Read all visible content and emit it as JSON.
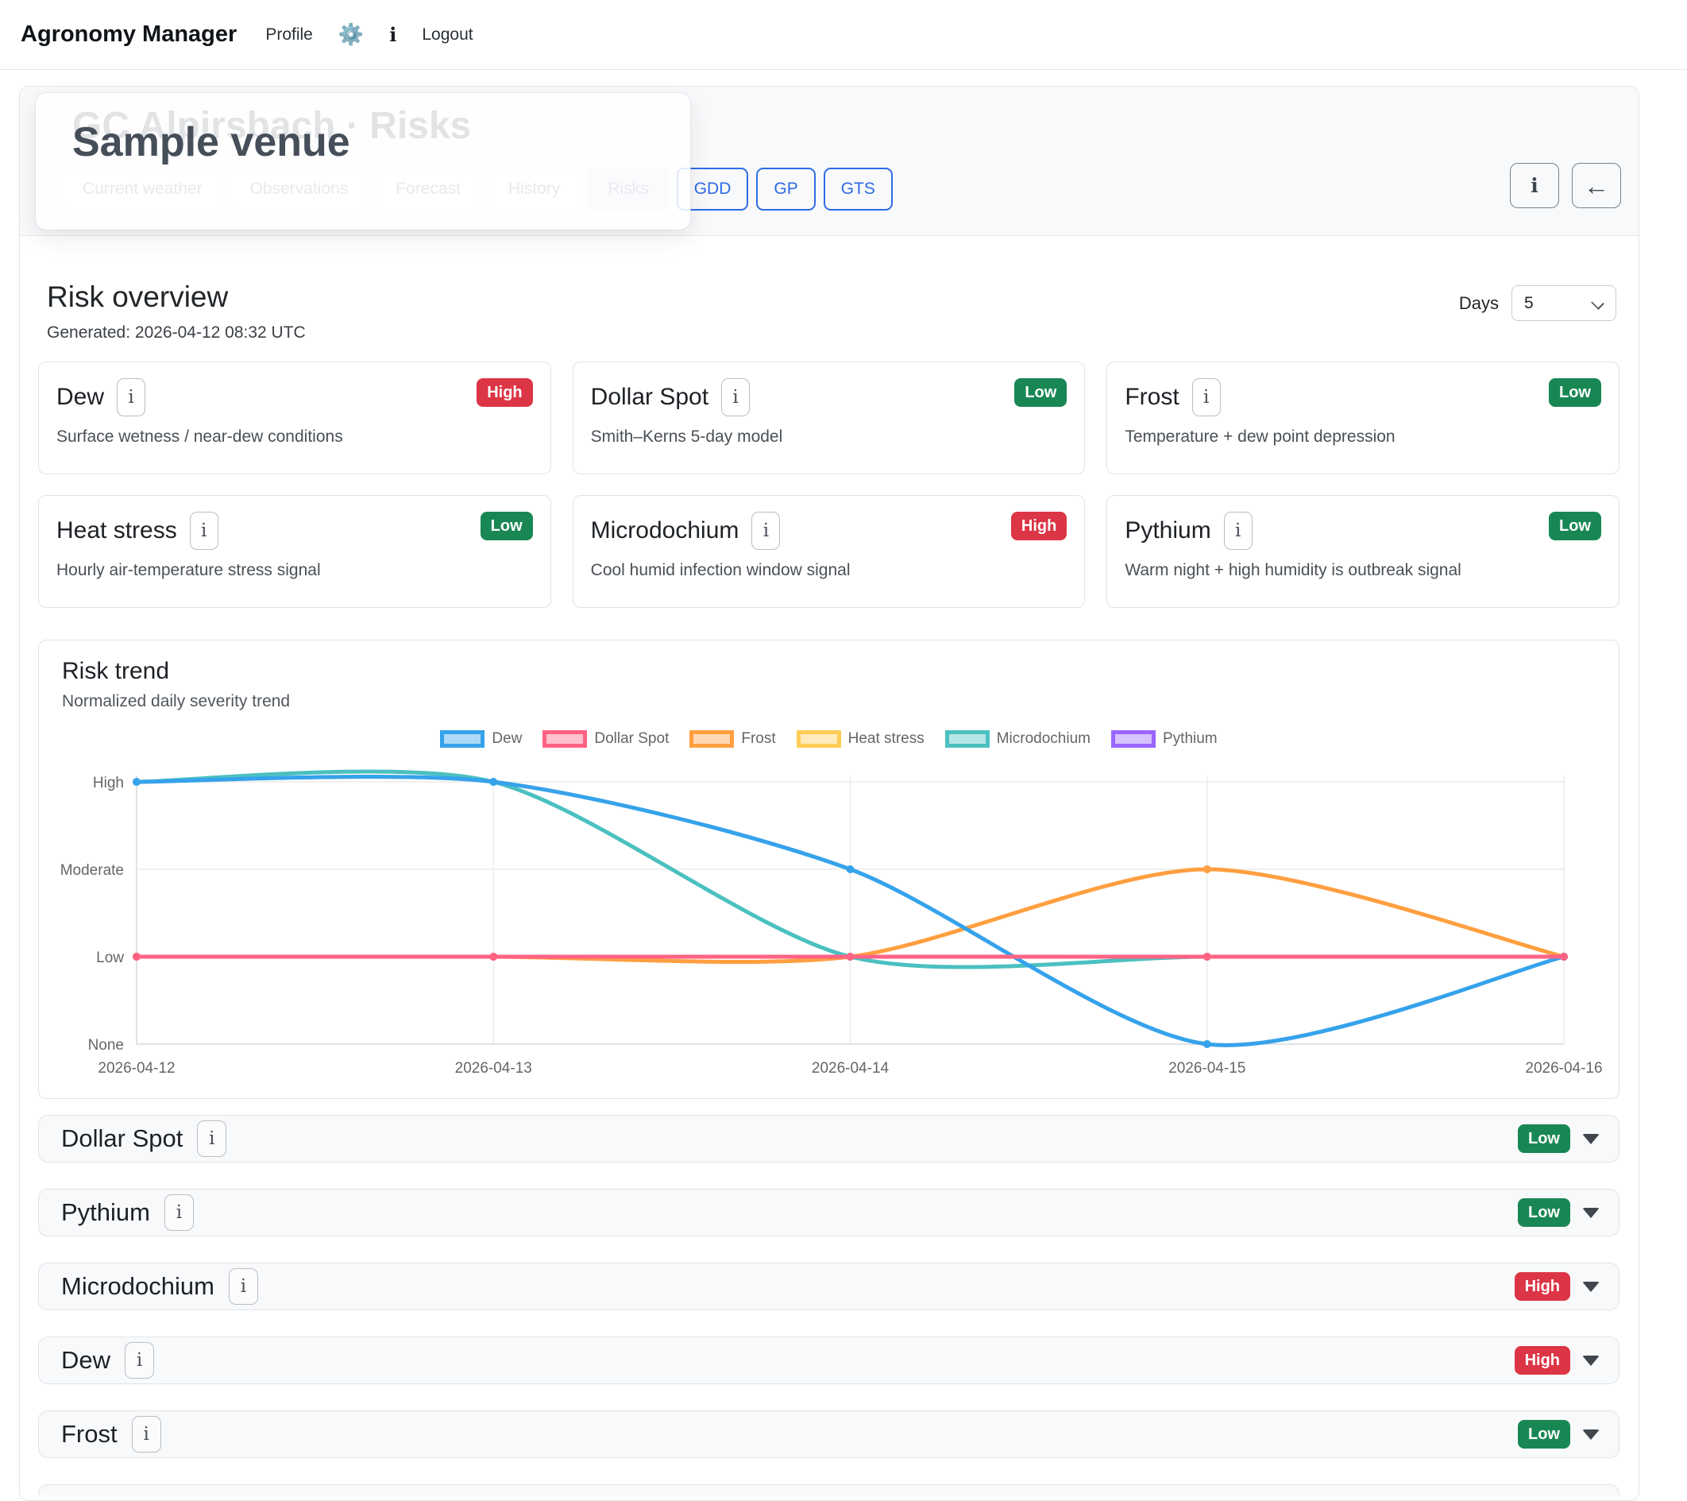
{
  "navbar": {
    "brand": "Agronomy Manager",
    "profile": "Profile",
    "logout": "Logout"
  },
  "header": {
    "venue_title": "GC Alpirsbach · Risks",
    "overlay_title": "Sample venue",
    "tabs": [
      {
        "label": "Current weather",
        "state": "inactive"
      },
      {
        "label": "Observations",
        "state": "inactive"
      },
      {
        "label": "Forecast",
        "state": "inactive"
      },
      {
        "label": "History",
        "state": "inactive"
      },
      {
        "label": "Risks",
        "state": "active"
      },
      {
        "label": "GDD",
        "state": "outline"
      },
      {
        "label": "GP",
        "state": "outline"
      },
      {
        "label": "GTS",
        "state": "outline"
      }
    ],
    "actions": {
      "info": "i",
      "back": "←"
    }
  },
  "overview": {
    "title": "Risk overview",
    "generated": "Generated: 2026-04-12 08:32 UTC",
    "days_label": "Days",
    "days_value": "5",
    "cards": [
      {
        "name": "Dew",
        "level": "High",
        "level_class": "high",
        "desc": "Surface wetness / near-dew conditions"
      },
      {
        "name": "Dollar Spot",
        "level": "Low",
        "level_class": "low",
        "desc": "Smith–Kerns 5-day model"
      },
      {
        "name": "Frost",
        "level": "Low",
        "level_class": "low",
        "desc": "Temperature + dew point depression"
      },
      {
        "name": "Heat stress",
        "level": "Low",
        "level_class": "low",
        "desc": "Hourly air-temperature stress signal"
      },
      {
        "name": "Microdochium",
        "level": "High",
        "level_class": "high",
        "desc": "Cool humid infection window signal"
      },
      {
        "name": "Pythium",
        "level": "Low",
        "level_class": "low",
        "desc": "Warm night + high humidity is outbreak signal"
      }
    ],
    "status_colors": {
      "high": "#dc3545",
      "low": "#198754"
    }
  },
  "trend": {
    "title": "Risk trend",
    "subtitle": "Normalized daily severity trend",
    "chart_data": {
      "type": "line",
      "x": [
        "2026-04-12",
        "2026-04-13",
        "2026-04-14",
        "2026-04-15",
        "2026-04-16"
      ],
      "y_ticks": [
        "None",
        "Low",
        "Moderate",
        "High"
      ],
      "y_values_map": {
        "None": 0,
        "Low": 1,
        "Moderate": 2,
        "High": 3
      },
      "grid": true,
      "legend_position": "top",
      "tension": 0.4,
      "series": [
        {
          "name": "Dew",
          "color": "#36a2eb",
          "values": [
            3,
            3,
            2,
            0,
            1
          ]
        },
        {
          "name": "Dollar Spot",
          "color": "#ff6384",
          "values": [
            1,
            1,
            1,
            1,
            1
          ]
        },
        {
          "name": "Frost",
          "color": "#ff9f40",
          "values": [
            1,
            1,
            1,
            2,
            1
          ]
        },
        {
          "name": "Heat stress",
          "color": "#ffcd56",
          "values": [
            1,
            1,
            1,
            1,
            1
          ]
        },
        {
          "name": "Microdochium",
          "color": "#4bc0c0",
          "values": [
            3,
            3,
            1,
            1,
            1
          ]
        },
        {
          "name": "Pythium",
          "color": "#9966ff",
          "values": [
            1,
            1,
            1,
            1,
            1
          ]
        }
      ]
    }
  },
  "sections": [
    {
      "name": "Dollar Spot",
      "level": "Low",
      "level_class": "low"
    },
    {
      "name": "Pythium",
      "level": "Low",
      "level_class": "low"
    },
    {
      "name": "Microdochium",
      "level": "High",
      "level_class": "high"
    },
    {
      "name": "Dew",
      "level": "High",
      "level_class": "high"
    },
    {
      "name": "Frost",
      "level": "Low",
      "level_class": "low"
    }
  ],
  "info_button_label": "i"
}
